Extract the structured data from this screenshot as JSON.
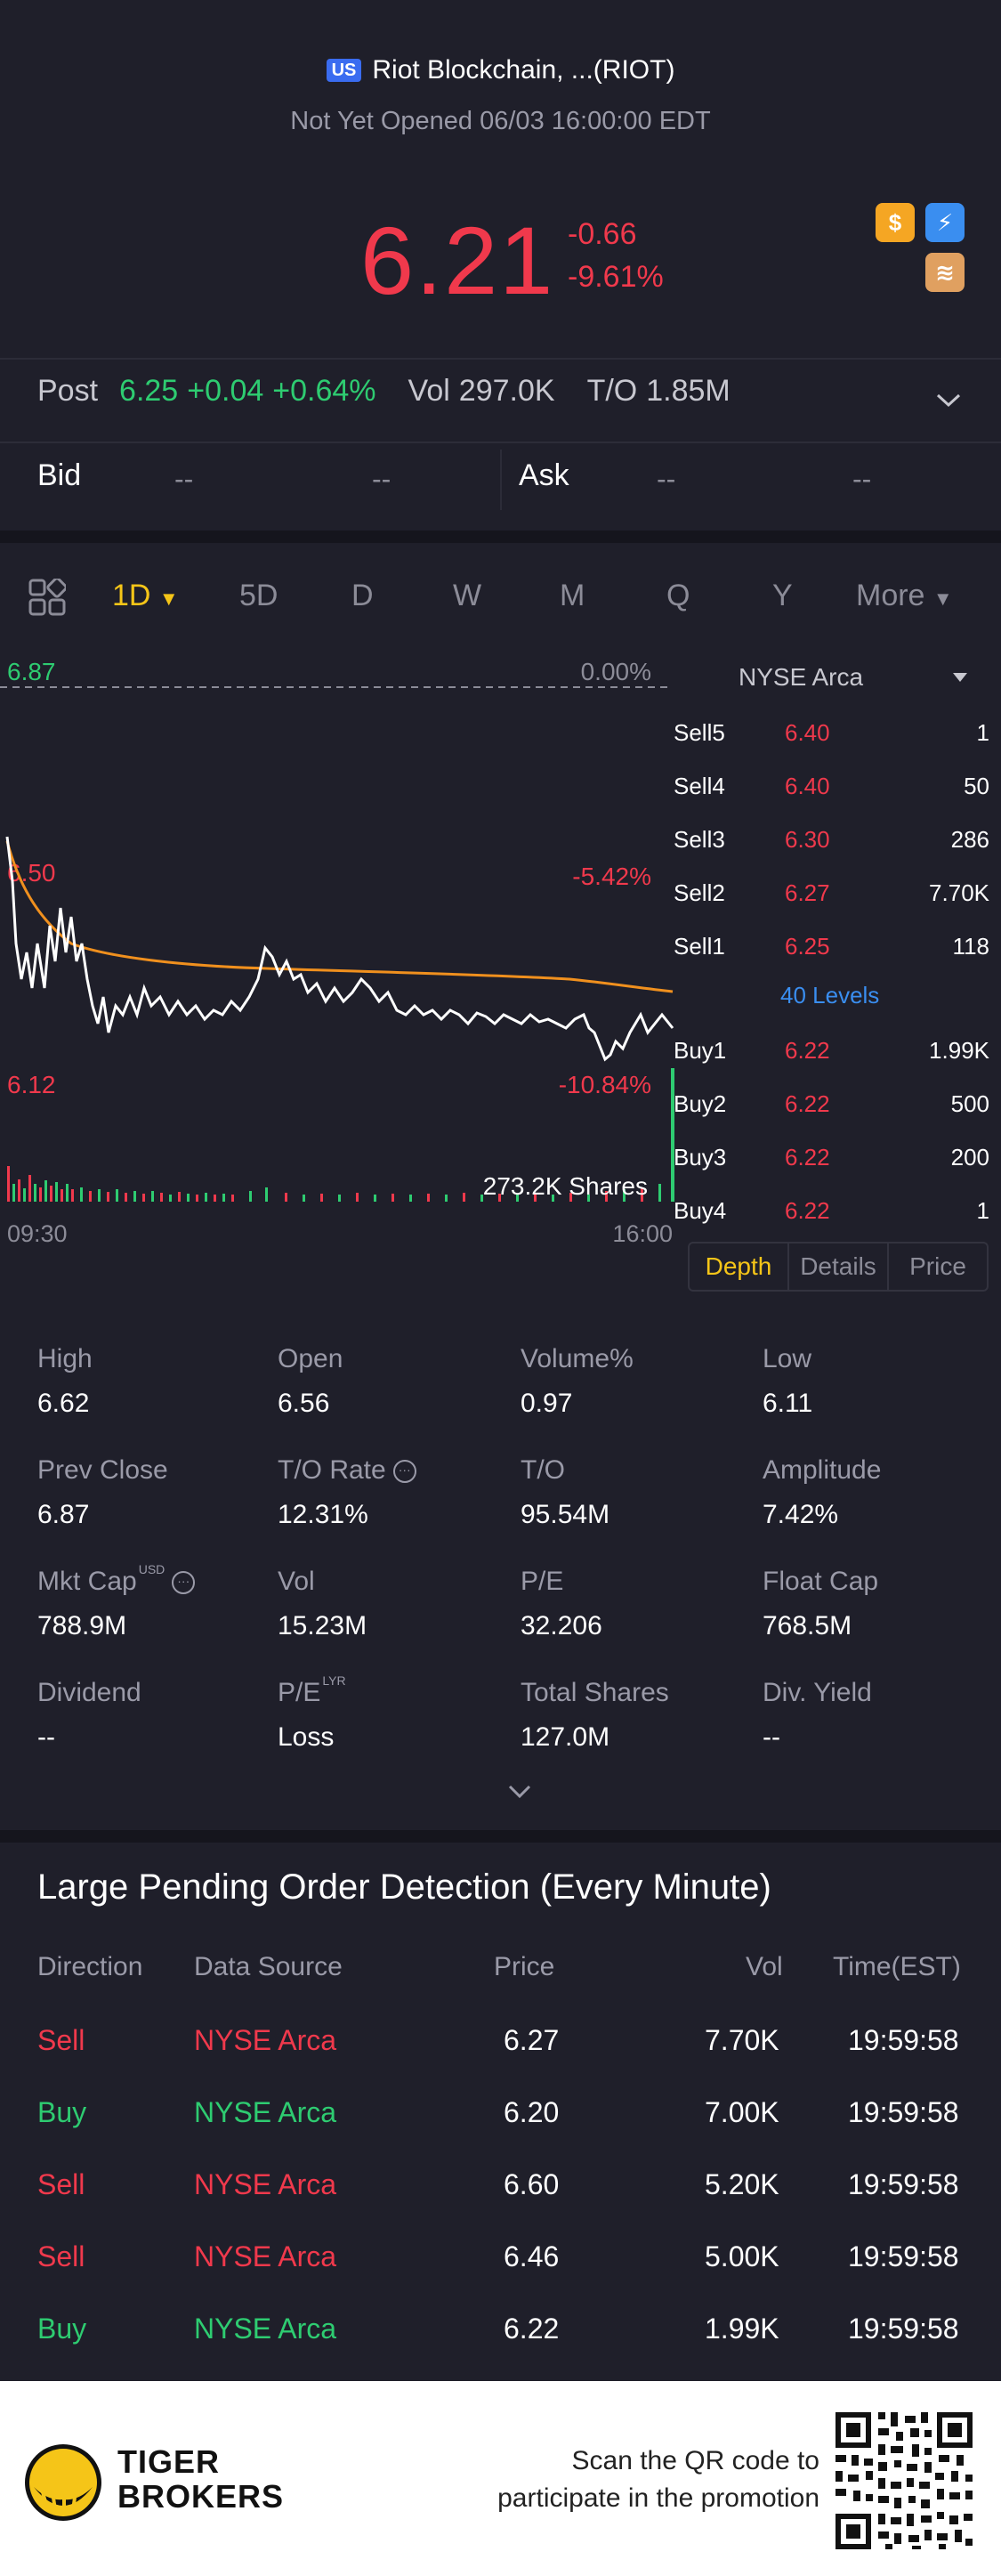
{
  "header": {
    "market_badge": "US",
    "title": "Riot Blockchain, ...(RIOT)",
    "status": "Not Yet Opened 06/03 16:00:00 EDT",
    "price": "6.21",
    "change": "-0.66",
    "change_pct": "-9.61%"
  },
  "post": {
    "label": "Post",
    "price": "6.25",
    "change": "+0.04",
    "change_pct": "+0.64%",
    "vol_label": "Vol",
    "vol": "297.0K",
    "to_label": "T/O",
    "to": "1.85M"
  },
  "bidask": {
    "bid_label": "Bid",
    "bid_price": "--",
    "bid_size": "--",
    "ask_label": "Ask",
    "ask_price": "--",
    "ask_size": "--"
  },
  "tabs": [
    "1D",
    "5D",
    "D",
    "W",
    "M",
    "Q",
    "Y",
    "More"
  ],
  "chart": {
    "top_price": "6.87",
    "top_pct": "0.00%",
    "mid_price": "6.50",
    "mid_pct": "-5.42%",
    "low_price": "6.12",
    "low_pct": "-10.84%",
    "volume_label": "273.2K Shares",
    "time_start": "09:30",
    "time_end": "16:00"
  },
  "depth": {
    "exchange": "NYSE Arca",
    "levels_link": "40 Levels",
    "sells": [
      {
        "label": "Sell5",
        "price": "6.40",
        "qty": "1"
      },
      {
        "label": "Sell4",
        "price": "6.40",
        "qty": "50"
      },
      {
        "label": "Sell3",
        "price": "6.30",
        "qty": "286"
      },
      {
        "label": "Sell2",
        "price": "6.27",
        "qty": "7.70K"
      },
      {
        "label": "Sell1",
        "price": "6.25",
        "qty": "118"
      }
    ],
    "buys": [
      {
        "label": "Buy1",
        "price": "6.22",
        "qty": "1.99K"
      },
      {
        "label": "Buy2",
        "price": "6.22",
        "qty": "500"
      },
      {
        "label": "Buy3",
        "price": "6.22",
        "qty": "200"
      },
      {
        "label": "Buy4",
        "price": "6.22",
        "qty": "1"
      }
    ],
    "tabs": [
      "Depth",
      "Details",
      "Price"
    ]
  },
  "stats": [
    {
      "label": "High",
      "value": "6.62"
    },
    {
      "label": "Open",
      "value": "6.56"
    },
    {
      "label": "Volume%",
      "value": "0.97"
    },
    {
      "label": "Low",
      "value": "6.11"
    },
    {
      "label": "Prev Close",
      "value": "6.87"
    },
    {
      "label": "T/O Rate",
      "value": "12.31%"
    },
    {
      "label": "T/O",
      "value": "95.54M"
    },
    {
      "label": "Amplitude",
      "value": "7.42%"
    },
    {
      "label": "Mkt Cap",
      "value": "788.9M",
      "sup": "USD"
    },
    {
      "label": "Vol",
      "value": "15.23M"
    },
    {
      "label": "P/E",
      "value": "32.206"
    },
    {
      "label": "Float Cap",
      "value": "768.5M"
    },
    {
      "label": "Dividend",
      "value": "--"
    },
    {
      "label": "P/E",
      "value": "Loss",
      "sup": "LYR"
    },
    {
      "label": "Total Shares",
      "value": "127.0M"
    },
    {
      "label": "Div. Yield",
      "value": "--"
    }
  ],
  "large_orders": {
    "title": "Large Pending Order Detection (Every Minute)",
    "headers": [
      "Direction",
      "Data Source",
      "Price",
      "Vol",
      "Time(EST)"
    ],
    "rows": [
      {
        "direction": "Sell",
        "source": "NYSE Arca",
        "price": "6.27",
        "vol": "7.70K",
        "time": "19:59:58"
      },
      {
        "direction": "Buy",
        "source": "NYSE Arca",
        "price": "6.20",
        "vol": "7.00K",
        "time": "19:59:58"
      },
      {
        "direction": "Sell",
        "source": "NYSE Arca",
        "price": "6.60",
        "vol": "5.20K",
        "time": "19:59:58"
      },
      {
        "direction": "Sell",
        "source": "NYSE Arca",
        "price": "6.46",
        "vol": "5.00K",
        "time": "19:59:58"
      },
      {
        "direction": "Buy",
        "source": "NYSE Arca",
        "price": "6.22",
        "vol": "1.99K",
        "time": "19:59:58"
      }
    ]
  },
  "footer": {
    "brand_line1": "TIGER",
    "brand_line2": "BROKERS",
    "promo_line1": "Scan the QR code to",
    "promo_line2": "participate in the promotion"
  },
  "colors": {
    "down": "#f0394c",
    "up": "#2ecc71",
    "accent": "#f5c518",
    "background": "#1f1f2a"
  }
}
